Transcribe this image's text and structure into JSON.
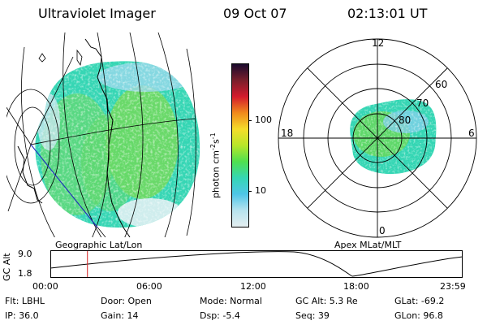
{
  "header": {
    "instrument": "Ultraviolet Imager",
    "date": "09 Oct 07",
    "time": "02:13:01 UT"
  },
  "colorbar": {
    "unit_label": "photon cm",
    "unit_exp1": "-2",
    "unit_s": "s",
    "unit_exp2": "-1",
    "tick_100": "100",
    "tick_10": "10",
    "colors": [
      "#1a0a2e",
      "#7a1f2b",
      "#d41b2c",
      "#f08a1c",
      "#f5dc2a",
      "#b8e62a",
      "#4fe04f",
      "#35d6b4",
      "#4fc6e8",
      "#b7e3ee",
      "#e4eef0"
    ]
  },
  "geo_map": {
    "label": "Geographic Lat/Lon"
  },
  "polar": {
    "label": "Apex MLat/MLT",
    "mlt_12": "12",
    "mlt_6": "6",
    "mlt_18": "18",
    "mlt_0": "0",
    "lat_60": "60",
    "lat_70": "70",
    "lat_80": "80"
  },
  "timeline": {
    "ylabel": "GC Alt",
    "y_max": "9.0",
    "y_min": "1.8",
    "x_ticks": [
      "00:00",
      "06:00",
      "12:00",
      "18:00",
      "23:59"
    ],
    "current_fraction": 0.09
  },
  "info": {
    "flt": "Flt: LBHL",
    "ip": "IP: 36.0",
    "door": "Door: Open",
    "gain": "Gain: 14",
    "mode": "Mode: Normal",
    "dsp": "Dsp:    -5.4",
    "gc_alt": "GC Alt: 5.3 Re",
    "seq": "Seq: 39",
    "glat": "GLat: -69.2",
    "glon": "GLon:  96.8"
  }
}
